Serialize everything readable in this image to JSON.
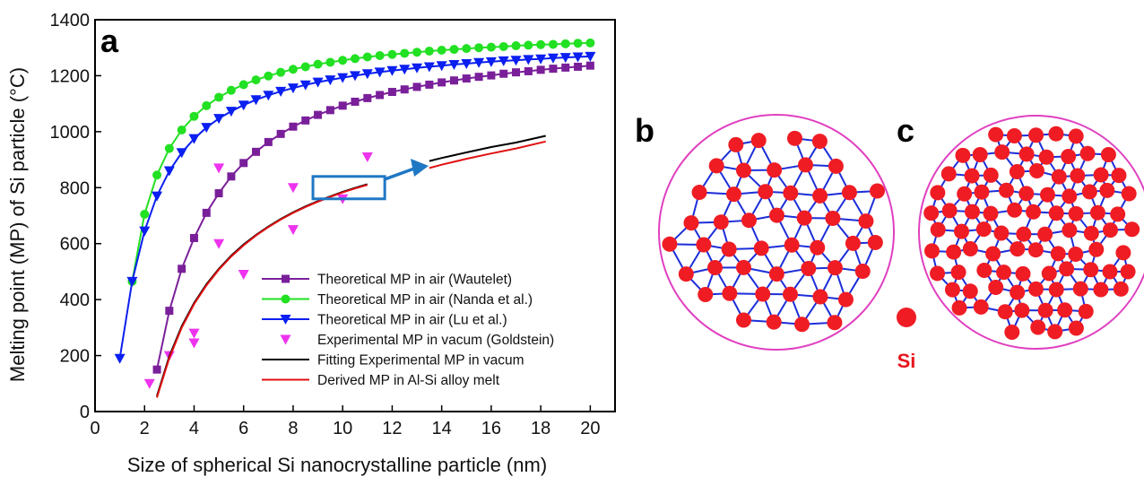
{
  "panel_labels": [
    "a",
    "b",
    "c"
  ],
  "si_legend_label": "Si",
  "colors": {
    "wautelet": "#7a1f9a",
    "nanda": "#22e022",
    "lu": "#0a1ff0",
    "goldstein": "#ee33ee",
    "fit": "#000000",
    "derived": "#e01010",
    "callout": "#1f78c4",
    "atom": "#ef1c24",
    "bond": "#1c2ed8",
    "circle": "#e040c0"
  },
  "chart_data": {
    "type": "line",
    "xlabel": "Size of spherical Si nanocrystalline particle (nm)",
    "ylabel": "Melting point (MP) of Si particle (°C)",
    "xlim": [
      0,
      21
    ],
    "ylim": [
      0,
      1400
    ],
    "xticks": [
      0,
      2,
      4,
      6,
      8,
      10,
      12,
      14,
      16,
      18,
      20
    ],
    "yticks": [
      0,
      200,
      400,
      600,
      800,
      1000,
      1200,
      1400
    ],
    "legend_position": "lower-right",
    "series": [
      {
        "name": "Theoretical MP in air (Wautelet)",
        "marker": "square",
        "x": [
          2.5,
          3,
          3.5,
          4,
          4.5,
          5,
          5.5,
          6,
          6.5,
          7,
          7.5,
          8,
          8.5,
          9,
          9.5,
          10,
          10.5,
          11,
          11.5,
          12,
          12.5,
          13,
          13.5,
          14,
          14.5,
          15,
          15.5,
          16,
          16.5,
          17,
          17.5,
          18,
          18.5,
          19,
          19.5,
          20
        ],
        "y": [
          150,
          360,
          510,
          620,
          710,
          780,
          840,
          888,
          928,
          963,
          992,
          1018,
          1040,
          1060,
          1077,
          1093,
          1107,
          1120,
          1131,
          1142,
          1151,
          1160,
          1168,
          1176,
          1183,
          1190,
          1196,
          1201,
          1207,
          1212,
          1216,
          1221,
          1225,
          1229,
          1232,
          1236
        ]
      },
      {
        "name": "Theoretical MP in air (Nanda et al.)",
        "marker": "circle",
        "x": [
          1.5,
          2,
          2.5,
          3,
          3.5,
          4,
          4.5,
          5,
          5.5,
          6,
          6.5,
          7,
          7.5,
          8,
          8.5,
          9,
          9.5,
          10,
          10.5,
          11,
          11.5,
          12,
          12.5,
          13,
          13.5,
          14,
          14.5,
          15,
          15.5,
          16,
          16.5,
          17,
          17.5,
          18,
          18.5,
          19,
          19.5,
          20
        ],
        "y": [
          465,
          705,
          845,
          940,
          1006,
          1055,
          1093,
          1123,
          1148,
          1168,
          1185,
          1199,
          1212,
          1223,
          1232,
          1241,
          1248,
          1255,
          1261,
          1267,
          1272,
          1276,
          1280,
          1284,
          1288,
          1291,
          1294,
          1297,
          1300,
          1302,
          1304,
          1307,
          1309,
          1311,
          1312,
          1314,
          1316,
          1317
        ]
      },
      {
        "name": "Theoretical MP in air (Lu et al.)",
        "marker": "triangle-down",
        "x": [
          1,
          1.5,
          2,
          2.5,
          3,
          3.5,
          4,
          4.5,
          5,
          5.5,
          6,
          6.5,
          7,
          7.5,
          8,
          8.5,
          9,
          9.5,
          10,
          10.5,
          11,
          11.5,
          12,
          12.5,
          13,
          13.5,
          14,
          14.5,
          15,
          15.5,
          16,
          16.5,
          17,
          17.5,
          18,
          18.5,
          19,
          19.5,
          20
        ],
        "y": [
          190,
          465,
          645,
          770,
          860,
          925,
          975,
          1015,
          1047,
          1073,
          1095,
          1114,
          1130,
          1144,
          1156,
          1167,
          1177,
          1185,
          1193,
          1200,
          1207,
          1213,
          1218,
          1223,
          1228,
          1232,
          1236,
          1240,
          1243,
          1247,
          1250,
          1253,
          1255,
          1258,
          1260,
          1263,
          1265,
          1267,
          1269
        ]
      },
      {
        "name": "Experimental MP in vacum (Goldstein)",
        "marker": "triangle-down-open",
        "x": [
          2.2,
          3,
          4,
          4,
          5,
          5,
          6,
          8,
          8,
          10,
          11
        ],
        "y": [
          100,
          200,
          280,
          245,
          870,
          600,
          490,
          800,
          650,
          760,
          910
        ]
      },
      {
        "name": "Fitting Experimental MP in vacum",
        "marker": "none",
        "x": [
          2.5,
          3,
          3.5,
          4,
          4.5,
          5,
          5.5,
          6,
          6.5,
          7,
          7.5,
          8,
          8.5,
          9,
          9.5,
          10,
          10.5,
          11,
          13.5,
          14,
          15,
          16,
          17,
          18.2
        ],
        "y": [
          55,
          198,
          305,
          388,
          455,
          510,
          557,
          597,
          631,
          661,
          688,
          712,
          733,
          752,
          769,
          785,
          799,
          812,
          895,
          906,
          926,
          945,
          961,
          985
        ]
      },
      {
        "name": "Derived MP in Al-Si alloy melt",
        "marker": "none",
        "x": [
          2.5,
          3,
          3.5,
          4,
          4.5,
          5,
          5.5,
          6,
          6.5,
          7,
          7.5,
          8,
          8.5,
          9,
          9.5,
          10,
          10.5,
          11,
          13.5,
          14,
          15,
          16,
          17,
          18.2
        ],
        "y": [
          50,
          192,
          300,
          384,
          451,
          507,
          554,
          594,
          629,
          659,
          686,
          710,
          731,
          750,
          767,
          783,
          797,
          810,
          870,
          882,
          903,
          922,
          940,
          965
        ]
      }
    ],
    "callout": {
      "box_x": [
        8.8,
        11.7
      ],
      "box_y": [
        760,
        840
      ]
    }
  }
}
